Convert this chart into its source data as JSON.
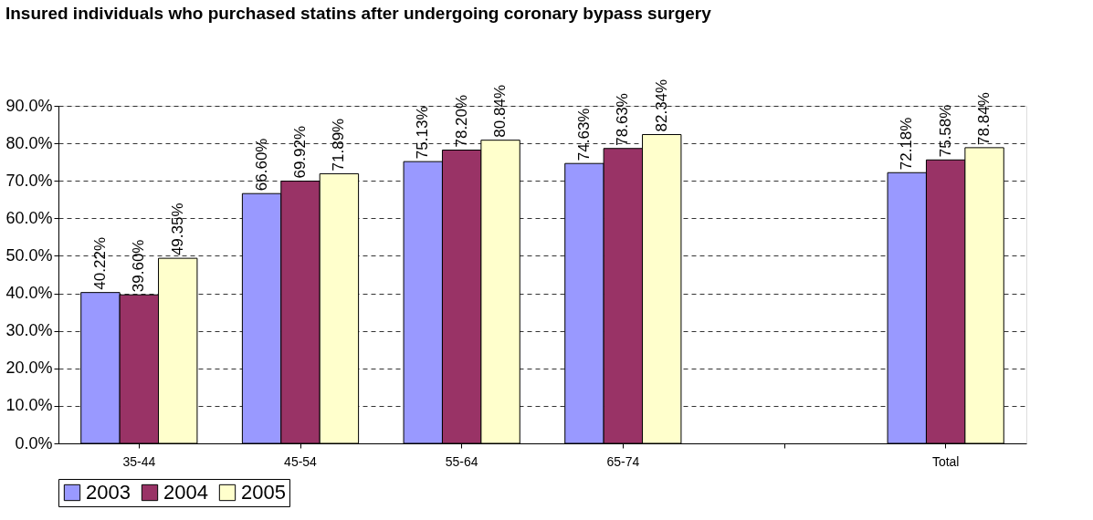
{
  "chart_data": {
    "type": "bar",
    "title": "Insured individuals who purchased statins after undergoing coronary bypass surgery",
    "categories": [
      "35-44",
      "45-54",
      "55-64",
      "65-74",
      null,
      "Total"
    ],
    "series": [
      {
        "name": "2003",
        "color": "#9999ff",
        "values": [
          40.22,
          66.6,
          75.13,
          74.63,
          null,
          72.18
        ],
        "value_labels": [
          "40.22%",
          "66.60%",
          "75.13%",
          "74.63%",
          null,
          "72.18%"
        ]
      },
      {
        "name": "2004",
        "color": "#993366",
        "values": [
          39.6,
          69.92,
          78.2,
          78.63,
          null,
          75.58
        ],
        "value_labels": [
          "39.60%",
          "69.92%",
          "78.20%",
          "78.63%",
          null,
          "75.58%"
        ]
      },
      {
        "name": "2005",
        "color": "#ffffcc",
        "values": [
          49.35,
          71.89,
          80.84,
          82.34,
          null,
          78.84
        ],
        "value_labels": [
          "49.35%",
          "71.89%",
          "80.84%",
          "82.34%",
          null,
          "78.84%"
        ]
      }
    ],
    "ylim": [
      0,
      90
    ],
    "yticks": [
      {
        "value": 0,
        "label": "0.0%"
      },
      {
        "value": 10,
        "label": "10.0%"
      },
      {
        "value": 20,
        "label": "20.0%"
      },
      {
        "value": 30,
        "label": "30.0%"
      },
      {
        "value": 40,
        "label": "40.0%"
      },
      {
        "value": 50,
        "label": "50.0%"
      },
      {
        "value": 60,
        "label": "60.0%"
      },
      {
        "value": 70,
        "label": "70.0%"
      },
      {
        "value": 80,
        "label": "80.0%"
      },
      {
        "value": 90,
        "label": "90.0%"
      }
    ],
    "grid": "y",
    "legend": "bottom"
  }
}
